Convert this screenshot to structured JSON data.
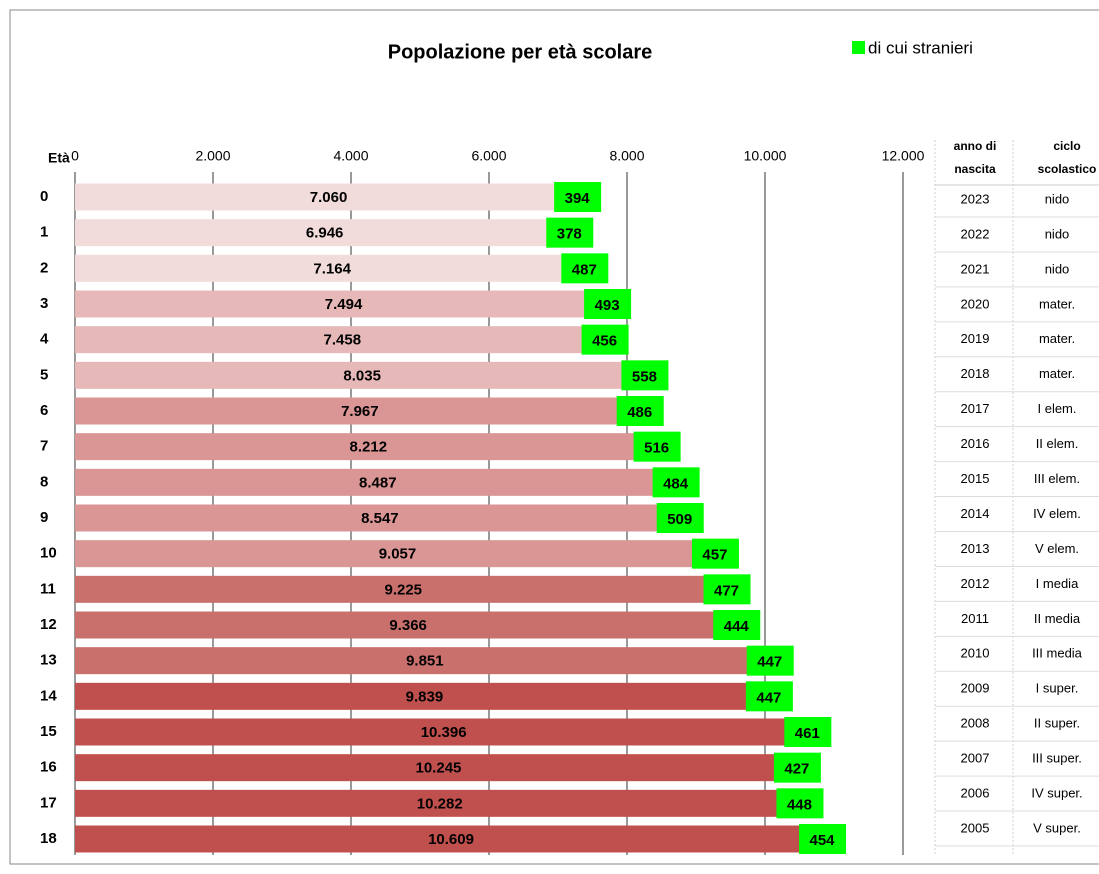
{
  "chart_data": {
    "type": "bar",
    "orientation": "horizontal",
    "title": "Popolazione per età scolare",
    "y_label": "Età",
    "categories": [
      0,
      1,
      2,
      3,
      4,
      5,
      6,
      7,
      8,
      9,
      10,
      11,
      12,
      13,
      14,
      15,
      16,
      17,
      18
    ],
    "colors": [
      "#f2dcdb",
      "#f2dcdb",
      "#f2dcdb",
      "#e6b9b8",
      "#e6b9b8",
      "#e6b9b8",
      "#d99694",
      "#d99694",
      "#d99694",
      "#d99694",
      "#d99694",
      "#c9706d",
      "#c9706d",
      "#c9706d",
      "#c0504d",
      "#c0504d",
      "#c0504d",
      "#c0504d",
      "#c0504d"
    ],
    "series": [
      {
        "values": [
          7060,
          6946,
          7164,
          7494,
          7458,
          8035,
          7967,
          8212,
          8487,
          8547,
          9057,
          9225,
          9366,
          9851,
          9839,
          10396,
          10245,
          10282,
          10609
        ],
        "value_labels": [
          "7.060",
          "6.946",
          "7.164",
          "7.494",
          "7.458",
          "8.035",
          "7.967",
          "8.212",
          "8.487",
          "8.547",
          "9.057",
          "9.225",
          "9.366",
          "9.851",
          "9.839",
          "10.396",
          "10.245",
          "10.282",
          "10.609"
        ]
      },
      {
        "name": "di cui stranieri",
        "color": "#00ff00",
        "values": [
          394,
          378,
          487,
          493,
          456,
          558,
          486,
          516,
          484,
          509,
          457,
          477,
          444,
          447,
          447,
          461,
          427,
          448,
          454
        ]
      }
    ],
    "xlim": [
      0,
      12000
    ],
    "xticks": [
      0,
      {
        "value": 2000,
        "label": "2.000"
      },
      {
        "value": 4000,
        "label": "4.000"
      },
      {
        "value": 6000,
        "label": "6.000"
      },
      {
        "value": 8000,
        "label": "8.000"
      },
      {
        "value": 10000,
        "label": "10.000"
      },
      {
        "value": 12000,
        "label": "12.000"
      }
    ],
    "grid": true
  },
  "table": {
    "headers": [
      [
        "anno di",
        "nascita"
      ],
      [
        "ciclo",
        "scolastico"
      ]
    ],
    "rows": [
      [
        2023,
        "nido"
      ],
      [
        2022,
        "nido"
      ],
      [
        2021,
        "nido"
      ],
      [
        2020,
        "mater."
      ],
      [
        2019,
        "mater."
      ],
      [
        2018,
        "mater."
      ],
      [
        2017,
        "I elem."
      ],
      [
        2016,
        "II elem."
      ],
      [
        2015,
        "III elem."
      ],
      [
        2014,
        "IV elem."
      ],
      [
        2013,
        "V elem."
      ],
      [
        2012,
        "I media"
      ],
      [
        2011,
        "II media"
      ],
      [
        2010,
        "III media"
      ],
      [
        2009,
        "I super."
      ],
      [
        2008,
        "II super."
      ],
      [
        2007,
        "III super."
      ],
      [
        2006,
        "IV super."
      ],
      [
        2005,
        "V super."
      ]
    ]
  }
}
